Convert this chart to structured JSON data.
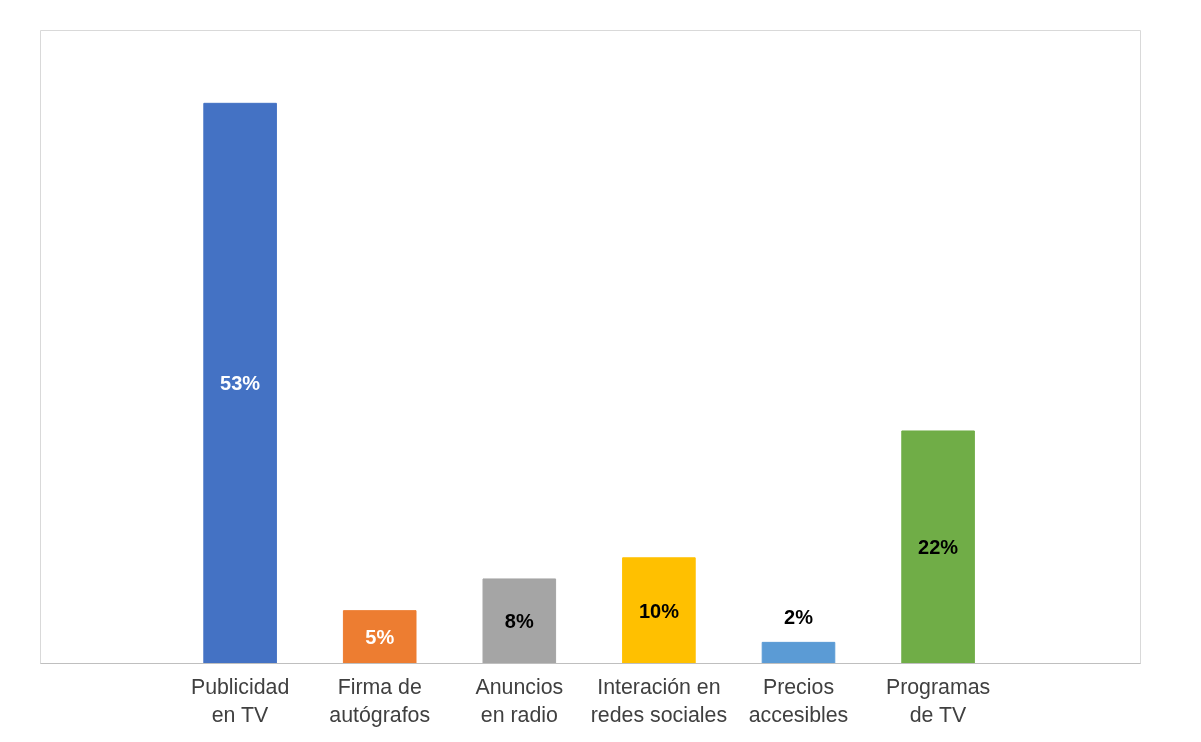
{
  "chart_data": {
    "type": "bar",
    "categories": [
      "Publicidad\nen TV",
      "Firma de\nautógrafos",
      "Anuncios\nen radio",
      "Interación en\nredes sociales",
      "Precios\naccesibles",
      "Programas\nde TV"
    ],
    "values": [
      53,
      5,
      8,
      10,
      2,
      22
    ],
    "colors": [
      "#4472c4",
      "#ed7d31",
      "#a5a5a5",
      "#ffc000",
      "#5b9bd5",
      "#70ad47"
    ],
    "value_labels": [
      "53%",
      "5%",
      "8%",
      "10%",
      "2%",
      "22%"
    ],
    "grid": false
  }
}
